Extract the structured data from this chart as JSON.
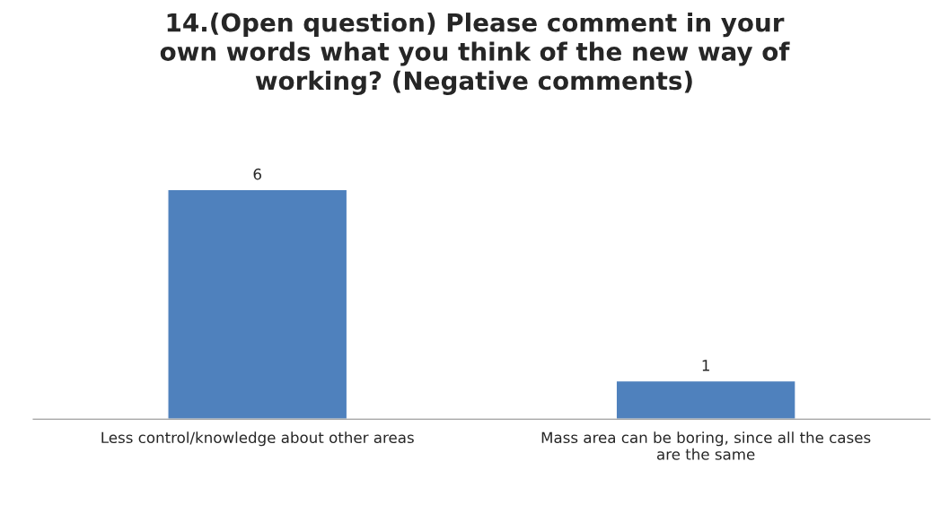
{
  "chart_data": {
    "type": "bar",
    "title": "14.(Open question) Please comment in your own words what you think of the new way of working? (Negative comments)",
    "categories": [
      "Less control/knowledge about other areas",
      "Mass area can be boring, since all the cases are the same"
    ],
    "values": [
      6,
      1
    ],
    "color": "#4f81bd",
    "data_labels": true,
    "grid": false,
    "legend": false
  }
}
